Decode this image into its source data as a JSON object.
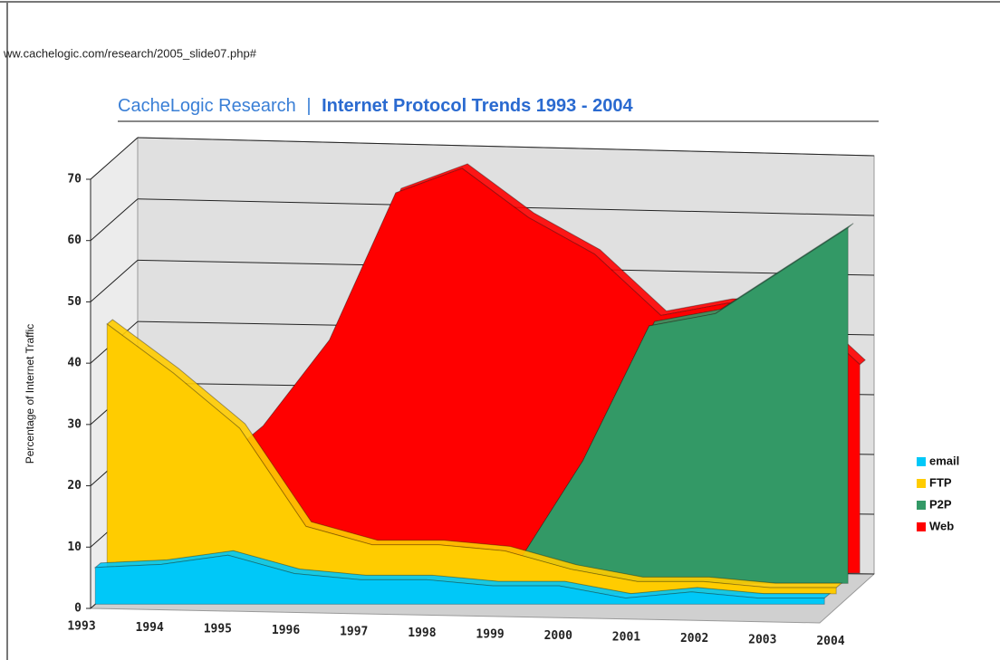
{
  "url": "ww.cachelogic.com/research/2005_slide07.php#",
  "chart_data": {
    "type": "area",
    "source": "CacheLogic Research",
    "title_separator": "|",
    "title": "Internet Protocol Trends 1993 - 2004",
    "y_label": "Percentage of Internet Traffic",
    "categories": [
      "1993",
      "1994",
      "1995",
      "1996",
      "1997",
      "1998",
      "1999",
      "2000",
      "2001",
      "2002",
      "2003",
      "2004"
    ],
    "series": [
      {
        "name": "email",
        "color": "#00c8f8",
        "values": [
          6,
          6.5,
          8,
          5,
          4,
          4,
          3,
          3,
          1,
          2,
          1,
          1
        ]
      },
      {
        "name": "FTP",
        "color": "#ffcc00",
        "values": [
          44,
          36,
          27,
          11,
          8,
          8,
          7,
          4,
          2,
          2,
          1,
          1
        ]
      },
      {
        "name": "P2P",
        "color": "#339966",
        "values": [
          0,
          0,
          0,
          0,
          0,
          0,
          3,
          20,
          42,
          44,
          51,
          58
        ]
      },
      {
        "name": "Web",
        "color": "#ff0000",
        "values": [
          10,
          15,
          24,
          38,
          62,
          66,
          58,
          52,
          42,
          44,
          44,
          34
        ]
      }
    ],
    "ylim": [
      0,
      70
    ],
    "yticks": [
      0,
      10,
      20,
      30,
      40,
      50,
      60,
      70
    ],
    "grid": true,
    "legend": "right"
  }
}
